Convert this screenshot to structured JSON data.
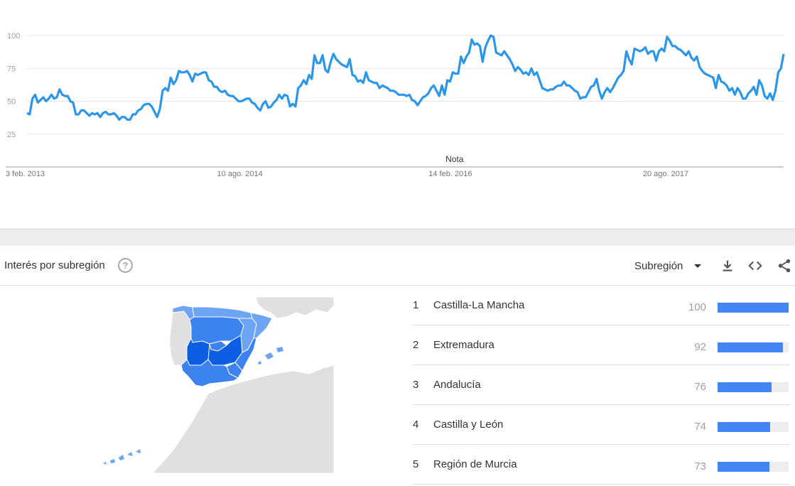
{
  "chart_data": {
    "type": "line",
    "title": "",
    "xlabel": "",
    "ylabel": "",
    "ylim": [
      0,
      100
    ],
    "yticks": [
      "100",
      "75",
      "50",
      "25"
    ],
    "xtick_labels": [
      {
        "label": "3 feb. 2013",
        "week": 0
      },
      {
        "label": "10 ago. 2014",
        "week": 79
      },
      {
        "label": "14 feb. 2016",
        "week": 157
      },
      {
        "label": "20 ago. 2017",
        "week": 236
      }
    ],
    "x_start": "3 feb. 2013",
    "grid": true,
    "line_color": "#2c96e8",
    "annotation": "Nota",
    "series": [
      {
        "values": [
          41,
          40,
          52,
          55,
          49,
          51,
          53,
          50,
          52,
          55,
          52,
          53,
          59,
          55,
          54,
          54,
          50,
          49,
          40,
          40,
          43,
          43,
          41,
          39,
          41,
          40,
          41,
          38,
          41,
          42,
          40,
          40,
          41,
          39,
          36,
          38,
          38,
          36,
          36,
          40,
          40,
          43,
          44,
          47,
          48,
          48,
          46,
          42,
          38,
          44,
          58,
          60,
          58,
          68,
          63,
          66,
          73,
          72,
          72,
          73,
          70,
          65,
          71,
          70,
          71,
          72,
          72,
          66,
          65,
          61,
          61,
          58,
          57,
          58,
          55,
          54,
          54,
          52,
          50,
          50,
          51,
          52,
          52,
          49,
          48,
          45,
          43,
          48,
          50,
          45,
          46,
          49,
          51,
          55,
          52,
          55,
          54,
          46,
          48,
          46,
          60,
          62,
          66,
          63,
          70,
          67,
          85,
          79,
          79,
          85,
          74,
          72,
          80,
          86,
          82,
          80,
          78,
          77,
          76,
          82,
          70,
          69,
          65,
          66,
          64,
          72,
          66,
          65,
          64,
          64,
          60,
          62,
          61,
          60,
          58,
          58,
          57,
          55,
          55,
          55,
          54,
          55,
          51,
          50,
          47,
          50,
          53,
          54,
          56,
          60,
          62,
          58,
          54,
          62,
          55,
          66,
          65,
          72,
          71,
          71,
          84,
          79,
          84,
          87,
          97,
          93,
          94,
          92,
          80,
          91,
          96,
          100,
          99,
          87,
          86,
          85,
          88,
          85,
          82,
          78,
          73,
          76,
          74,
          71,
          72,
          70,
          75,
          70,
          72,
          66,
          60,
          59,
          58,
          59,
          59,
          61,
          62,
          62,
          65,
          62,
          62,
          60,
          58,
          57,
          52,
          53,
          53,
          57,
          61,
          62,
          67,
          58,
          52,
          57,
          60,
          57,
          60,
          64,
          68,
          70,
          73,
          88,
          82,
          78,
          90,
          89,
          88,
          89,
          91,
          86,
          88,
          88,
          81,
          88,
          90,
          88,
          99,
          96,
          92,
          92,
          90,
          89,
          87,
          85,
          88,
          83,
          81,
          84,
          76,
          73,
          71,
          70,
          69,
          68,
          60,
          70,
          65,
          64,
          62,
          58,
          60,
          55,
          60,
          57,
          52,
          52,
          56,
          58,
          61,
          55,
          66,
          62,
          54,
          52,
          56,
          51,
          58,
          72,
          75,
          86
        ]
      }
    ]
  },
  "region_section": {
    "title": "Interés por subregión",
    "help_icon": "help-circle-icon",
    "resolution_label": "Subregión",
    "icons": {
      "dropdown": "caret-down-icon",
      "download": "download-icon",
      "embed": "embed-code-icon",
      "share": "share-icon"
    },
    "map_colors": {
      "land": "#e0e0e0",
      "region_light": "#6ea4f4",
      "region_mid": "#3d83ef",
      "region_dark": "#0c5fe3"
    },
    "ranking": [
      {
        "rank": "1",
        "name": "Castilla-La Mancha",
        "value": "100",
        "score": 100
      },
      {
        "rank": "2",
        "name": "Extremadura",
        "value": "92",
        "score": 92
      },
      {
        "rank": "3",
        "name": "Andalucía",
        "value": "76",
        "score": 76
      },
      {
        "rank": "4",
        "name": "Castilla y León",
        "value": "74",
        "score": 74
      },
      {
        "rank": "5",
        "name": "Región de Murcia",
        "value": "73",
        "score": 73
      }
    ],
    "bar_color": "#4285f4"
  }
}
